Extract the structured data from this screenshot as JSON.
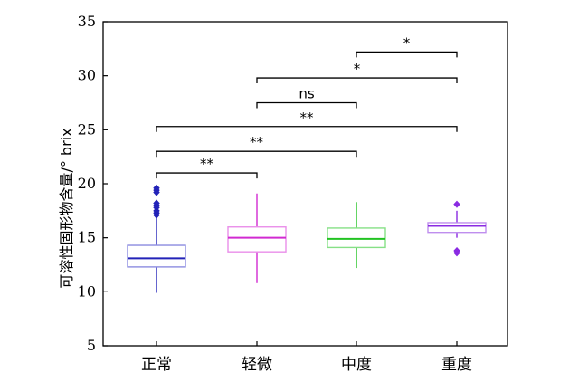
{
  "chart_data": {
    "type": "box",
    "categories": [
      "正常",
      "轻微",
      "中度",
      "重度"
    ],
    "ylabel": "可溶性固形物含量/° brix",
    "ylim": [
      5,
      35
    ],
    "yticks": [
      5,
      10,
      15,
      20,
      25,
      30,
      35
    ],
    "grid": false,
    "series": [
      {
        "category": "正常",
        "color": "#2323b8",
        "box_color": "#8c8ce0",
        "min": 9.9,
        "q1": 12.3,
        "median": 13.1,
        "q3": 14.3,
        "max": 17.0,
        "outliers": [
          17.1,
          17.3,
          17.5,
          17.8,
          18.0,
          18.2,
          19.2,
          19.4,
          19.6
        ]
      },
      {
        "category": "轻微",
        "color": "#d12ad1",
        "box_color": "#e98ee9",
        "min": 10.8,
        "q1": 13.7,
        "median": 15.0,
        "q3": 16.0,
        "max": 19.1,
        "outliers": []
      },
      {
        "category": "中度",
        "color": "#22c322",
        "box_color": "#86e086",
        "min": 12.2,
        "q1": 14.1,
        "median": 14.9,
        "q3": 15.9,
        "max": 18.3,
        "outliers": []
      },
      {
        "category": "重度",
        "color": "#8a2be2",
        "box_color": "#bf8eee",
        "min": 15.0,
        "q1": 15.5,
        "median": 16.1,
        "q3": 16.4,
        "max": 17.5,
        "outliers": [
          18.1,
          13.8,
          13.6
        ]
      }
    ],
    "significance": [
      {
        "from": 0,
        "to": 1,
        "y": 21.0,
        "label": "**"
      },
      {
        "from": 0,
        "to": 2,
        "y": 23.0,
        "label": "**"
      },
      {
        "from": 0,
        "to": 3,
        "y": 25.3,
        "label": "**"
      },
      {
        "from": 1,
        "to": 2,
        "y": 27.5,
        "label": "ns"
      },
      {
        "from": 1,
        "to": 3,
        "y": 29.8,
        "label": "*"
      },
      {
        "from": 2,
        "to": 3,
        "y": 32.2,
        "label": "*"
      }
    ]
  }
}
